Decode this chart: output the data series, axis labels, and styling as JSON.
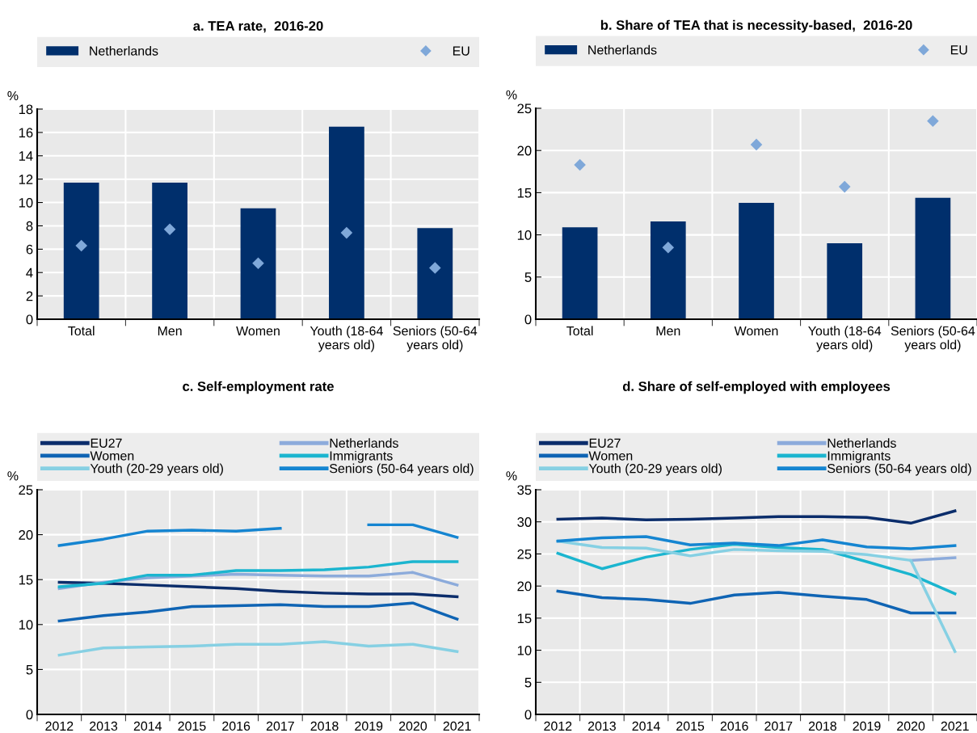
{
  "chart_data": [
    {
      "type": "bar",
      "title": "a. TEA rate,  2016-20",
      "ylabel": "%",
      "categories": [
        "Total",
        "Men",
        "Women",
        "Youth (18-64 years old)",
        "Seniors (50-64 years old)"
      ],
      "ylim": [
        0,
        18
      ],
      "yticks": [
        0,
        2,
        4,
        6,
        8,
        10,
        12,
        14,
        16,
        18
      ],
      "grid": true,
      "legend": "top",
      "series": [
        {
          "name": "Netherlands",
          "color": "#002f6c",
          "values": [
            11.7,
            11.7,
            9.5,
            16.5,
            7.8
          ]
        },
        {
          "name": "EU",
          "type": "scatter",
          "marker": "diamond",
          "color": "#7fa8d9",
          "values": [
            6.3,
            7.7,
            4.8,
            7.4,
            4.4
          ]
        }
      ]
    },
    {
      "type": "bar",
      "title": "b. Share of TEA that is necessity-based,  2016-20",
      "ylabel": "%",
      "categories": [
        "Total",
        "Men",
        "Women",
        "Youth (18-64 years old)",
        "Seniors (50-64 years old)"
      ],
      "ylim": [
        0,
        25
      ],
      "yticks": [
        0,
        5,
        10,
        15,
        20,
        25
      ],
      "grid": true,
      "legend": "top",
      "series": [
        {
          "name": "Netherlands",
          "color": "#002f6c",
          "values": [
            10.9,
            11.6,
            13.8,
            9.0,
            14.4
          ]
        },
        {
          "name": "EU",
          "type": "scatter",
          "marker": "diamond",
          "color": "#7fa8d9",
          "values": [
            18.3,
            8.5,
            20.7,
            15.7,
            23.5
          ]
        }
      ]
    },
    {
      "type": "line",
      "title": "c. Self-employment rate",
      "ylabel": "%",
      "categories": [
        "2012",
        "2013",
        "2014",
        "2015",
        "2016",
        "2017",
        "2018",
        "2019",
        "2020",
        "2021"
      ],
      "ylim": [
        0,
        25
      ],
      "yticks": [
        0,
        5,
        10,
        15,
        20,
        25
      ],
      "grid": true,
      "legend": "top",
      "series": [
        {
          "name": "EU27",
          "color": "#0b2d6b",
          "values": [
            14.7,
            14.6,
            14.4,
            14.2,
            14.0,
            13.7,
            13.5,
            13.4,
            13.4,
            13.1
          ]
        },
        {
          "name": "Netherlands",
          "color": "#8cabdb",
          "values": [
            14.0,
            14.7,
            15.2,
            15.4,
            15.6,
            15.5,
            15.4,
            15.4,
            15.8,
            14.4
          ]
        },
        {
          "name": "Women",
          "color": "#0f64b4",
          "values": [
            10.4,
            11.0,
            11.4,
            12.0,
            12.1,
            12.2,
            12.0,
            12.0,
            12.4,
            10.6
          ]
        },
        {
          "name": "Immigrants",
          "color": "#1bb5cf",
          "values": [
            14.2,
            14.6,
            15.5,
            15.5,
            16.0,
            16.0,
            16.1,
            16.4,
            17.0,
            17.0
          ]
        },
        {
          "name": "Youth (20-29 years old)",
          "color": "#86d0e3",
          "values": [
            6.6,
            7.4,
            7.5,
            7.6,
            7.8,
            7.8,
            8.1,
            7.6,
            7.8,
            7.0
          ]
        },
        {
          "name": "Seniors (50-64 years old)",
          "color": "#1585d1",
          "values": [
            18.8,
            19.5,
            20.4,
            20.5,
            20.4,
            20.7,
            null,
            21.1,
            21.1,
            19.7
          ]
        }
      ]
    },
    {
      "type": "line",
      "title": "d. Share of self-employed with employees",
      "ylabel": "%",
      "categories": [
        "2012",
        "2013",
        "2014",
        "2015",
        "2016",
        "2017",
        "2018",
        "2019",
        "2020",
        "2021"
      ],
      "ylim": [
        0,
        35
      ],
      "yticks": [
        0,
        5,
        10,
        15,
        20,
        25,
        30,
        35
      ],
      "grid": true,
      "legend": "top",
      "series": [
        {
          "name": "EU27",
          "color": "#0b2d6b",
          "values": [
            30.4,
            30.6,
            30.3,
            30.4,
            30.6,
            30.8,
            30.8,
            30.7,
            29.8,
            31.7
          ]
        },
        {
          "name": "Netherlands",
          "color": "#8cabdb",
          "values": [
            null,
            null,
            null,
            null,
            null,
            null,
            null,
            null,
            24.0,
            24.4
          ]
        },
        {
          "name": "Women",
          "color": "#0f64b4",
          "values": [
            19.2,
            18.2,
            17.9,
            17.3,
            18.6,
            19.0,
            18.4,
            17.9,
            15.8,
            15.8
          ]
        },
        {
          "name": "Immigrants",
          "color": "#1bb5cf",
          "values": [
            25.1,
            22.7,
            24.5,
            25.7,
            26.5,
            26.0,
            25.7,
            23.8,
            21.8,
            18.8
          ]
        },
        {
          "name": "Youth (20-29 years old)",
          "color": "#86d0e3",
          "values": [
            27.0,
            26.0,
            25.9,
            24.7,
            25.7,
            25.5,
            25.4,
            24.9,
            24.0,
            9.8
          ]
        },
        {
          "name": "Seniors (50-64 years old)",
          "color": "#1585d1",
          "values": [
            27.0,
            27.5,
            27.7,
            26.4,
            26.7,
            26.3,
            27.2,
            26.1,
            25.8,
            26.3
          ]
        }
      ]
    }
  ]
}
